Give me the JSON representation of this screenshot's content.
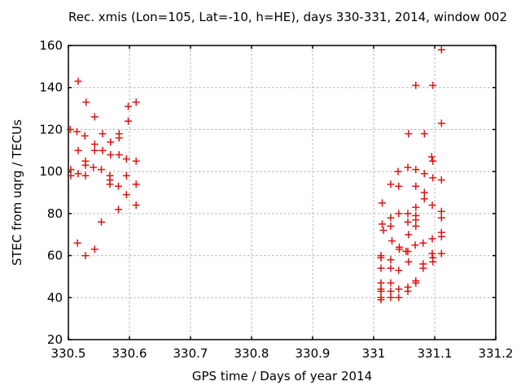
{
  "page": {
    "background": "#ffffff"
  },
  "chart_data": {
    "type": "scatter",
    "title": "Rec. xmis (Lon=105, Lat=-10, h=HE), days 330-331, 2014, window 002",
    "xlabel": "GPS time / Days of year 2014",
    "ylabel": "STEC from uqrg / TECUs",
    "xlim": [
      330.5,
      331.2
    ],
    "ylim": [
      20,
      160
    ],
    "xticks": [
      [
        330.5,
        "330.5"
      ],
      [
        330.6,
        "330.6"
      ],
      [
        330.7,
        "330.7"
      ],
      [
        330.8,
        "330.8"
      ],
      [
        330.9,
        "330.9"
      ],
      [
        331.0,
        "331"
      ],
      [
        331.1,
        "331.1"
      ],
      [
        331.2,
        "331.2"
      ]
    ],
    "yticks": [
      [
        20,
        "20"
      ],
      [
        40,
        "40"
      ],
      [
        60,
        "60"
      ],
      [
        80,
        "80"
      ],
      [
        100,
        "100"
      ],
      [
        120,
        "120"
      ],
      [
        140,
        "140"
      ],
      [
        160,
        "160"
      ]
    ],
    "grid": {
      "visible": true,
      "style": "dashed",
      "color": "#b0b0b0"
    },
    "axis_color": "#000000",
    "legend_position": "none",
    "series": [
      {
        "marker": "plus",
        "color": "#dd1414",
        "points": [
          [
            330.516,
            143
          ],
          [
            330.529,
            133
          ],
          [
            330.611,
            133
          ],
          [
            330.598,
            131
          ],
          [
            330.543,
            126
          ],
          [
            330.598,
            124
          ],
          [
            330.503,
            120
          ],
          [
            330.514,
            119
          ],
          [
            330.556,
            118
          ],
          [
            330.583,
            118
          ],
          [
            330.527,
            117
          ],
          [
            330.583,
            116
          ],
          [
            330.569,
            114
          ],
          [
            330.543,
            113
          ],
          [
            330.516,
            110
          ],
          [
            330.543,
            110
          ],
          [
            330.556,
            110
          ],
          [
            330.569,
            108
          ],
          [
            330.583,
            108
          ],
          [
            330.595,
            106
          ],
          [
            330.611,
            105
          ],
          [
            330.528,
            105
          ],
          [
            330.528,
            103
          ],
          [
            330.541,
            102
          ],
          [
            330.554,
            101
          ],
          [
            330.504,
            101
          ],
          [
            330.516,
            99
          ],
          [
            330.504,
            98
          ],
          [
            330.528,
            98
          ],
          [
            330.568,
            98
          ],
          [
            330.595,
            98
          ],
          [
            330.568,
            96
          ],
          [
            330.611,
            94
          ],
          [
            330.568,
            94
          ],
          [
            330.582,
            93
          ],
          [
            330.595,
            89
          ],
          [
            330.611,
            84
          ],
          [
            330.582,
            82
          ],
          [
            330.554,
            76
          ],
          [
            330.515,
            66
          ],
          [
            330.543,
            63
          ],
          [
            330.528,
            60
          ],
          [
            331.111,
            158
          ],
          [
            331.069,
            141
          ],
          [
            331.097,
            141
          ],
          [
            331.111,
            123
          ],
          [
            331.057,
            118
          ],
          [
            331.083,
            118
          ],
          [
            331.095,
            107
          ],
          [
            331.097,
            105
          ],
          [
            331.056,
            102
          ],
          [
            331.069,
            101
          ],
          [
            331.04,
            100
          ],
          [
            331.083,
            99
          ],
          [
            331.097,
            97
          ],
          [
            331.111,
            96
          ],
          [
            331.028,
            94
          ],
          [
            331.041,
            93
          ],
          [
            331.069,
            93
          ],
          [
            331.083,
            90
          ],
          [
            331.083,
            87
          ],
          [
            331.014,
            85
          ],
          [
            331.096,
            84
          ],
          [
            331.069,
            83
          ],
          [
            331.111,
            81
          ],
          [
            331.041,
            80
          ],
          [
            331.056,
            80
          ],
          [
            331.069,
            79
          ],
          [
            331.028,
            78
          ],
          [
            331.111,
            78
          ],
          [
            331.069,
            77
          ],
          [
            331.056,
            76
          ],
          [
            331.014,
            75
          ],
          [
            331.028,
            74
          ],
          [
            331.069,
            74
          ],
          [
            331.016,
            72
          ],
          [
            331.111,
            71
          ],
          [
            331.057,
            70
          ],
          [
            331.111,
            69
          ],
          [
            331.096,
            68
          ],
          [
            331.03,
            67
          ],
          [
            331.081,
            66
          ],
          [
            331.068,
            65
          ],
          [
            331.042,
            64
          ],
          [
            331.042,
            63
          ],
          [
            331.053,
            62
          ],
          [
            331.056,
            62
          ],
          [
            331.096,
            61
          ],
          [
            331.111,
            61
          ],
          [
            331.012,
            60
          ],
          [
            331.012,
            59
          ],
          [
            331.097,
            59
          ],
          [
            331.028,
            58
          ],
          [
            331.057,
            57
          ],
          [
            331.097,
            57
          ],
          [
            331.081,
            56
          ],
          [
            331.012,
            54
          ],
          [
            331.028,
            54
          ],
          [
            331.081,
            54
          ],
          [
            331.041,
            53
          ],
          [
            331.069,
            48
          ],
          [
            331.012,
            47
          ],
          [
            331.028,
            47
          ],
          [
            331.069,
            47
          ],
          [
            331.056,
            45
          ],
          [
            331.041,
            44
          ],
          [
            331.012,
            44
          ],
          [
            331.012,
            43
          ],
          [
            331.028,
            43
          ],
          [
            331.056,
            43
          ],
          [
            331.041,
            40
          ],
          [
            331.012,
            40
          ],
          [
            331.028,
            40
          ],
          [
            331.012,
            39
          ]
        ]
      }
    ]
  }
}
